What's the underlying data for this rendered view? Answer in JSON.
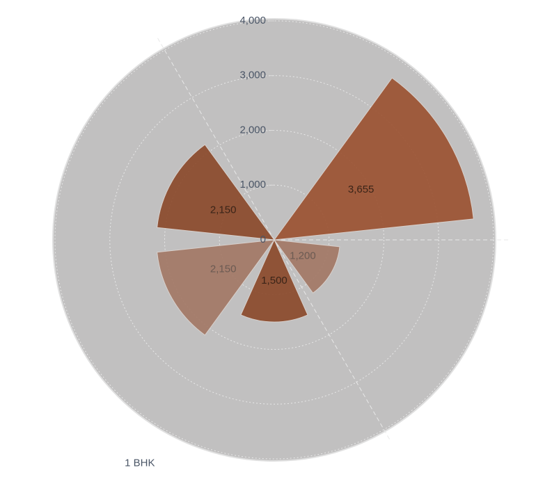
{
  "chart_data": {
    "type": "polar-area",
    "categories": [
      null,
      null,
      null,
      null,
      "1 BHK",
      null
    ],
    "values": [
      null,
      3655,
      1200,
      1500,
      2150,
      2150
    ],
    "value_labels": [
      null,
      "3,655",
      "1,200",
      "1,500",
      "2,150",
      "2,150"
    ],
    "colors": [
      "#8b4a2b",
      "#9b5232",
      "#a37866",
      "#8b4a2b",
      "#a37866",
      "#8b4a2b"
    ],
    "ylim": [
      0,
      4000
    ],
    "yticks": [
      0,
      {
        "value": 1000,
        "label": "1,000"
      },
      {
        "value": 2000,
        "label": "2,000"
      },
      {
        "value": 3000,
        "label": "3,000"
      },
      {
        "value": 4000,
        "label": "4,000"
      }
    ],
    "grid": true
  }
}
